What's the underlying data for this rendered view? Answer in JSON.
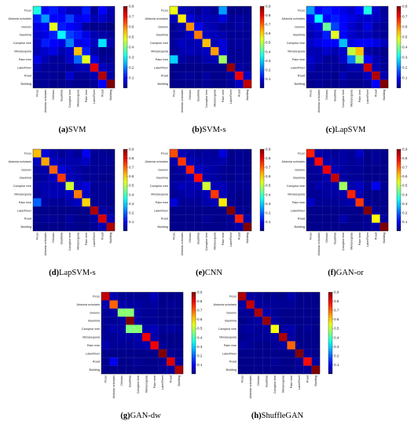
{
  "figure": {
    "class_labels": [
      "Ficus",
      "Alstonia scholaris",
      "Delonix",
      "Bauhinia",
      "Camphor tree",
      "Metasequoia",
      "Palm tree",
      "Lake/River",
      "Road",
      "Building"
    ]
  },
  "chart_data": [
    {
      "type": "heatmap",
      "id": "a",
      "caption_label": "(a)",
      "caption_text": "SVM",
      "colorbar": {
        "min": 0,
        "max": 0.8,
        "ticks": [
          0.1,
          0.2,
          0.3,
          0.4,
          0.5,
          0.6,
          0.7,
          0.8
        ]
      },
      "matrix": [
        [
          0.32,
          0.1,
          0.12,
          0.08,
          0.05,
          0.05,
          0.12,
          0.02,
          0.1,
          0.04
        ],
        [
          0.12,
          0.22,
          0.1,
          0.1,
          0.15,
          0.08,
          0.1,
          0.04,
          0.06,
          0.03
        ],
        [
          0.08,
          0.1,
          0.48,
          0.12,
          0.1,
          0.08,
          0.02,
          0.01,
          0.01,
          0.0
        ],
        [
          0.06,
          0.08,
          0.12,
          0.3,
          0.15,
          0.12,
          0.08,
          0.04,
          0.03,
          0.02
        ],
        [
          0.05,
          0.12,
          0.1,
          0.08,
          0.2,
          0.08,
          0.1,
          0.05,
          0.28,
          0.04
        ],
        [
          0.04,
          0.06,
          0.08,
          0.04,
          0.06,
          0.55,
          0.12,
          0.03,
          0.01,
          0.01
        ],
        [
          0.08,
          0.04,
          0.02,
          0.02,
          0.06,
          0.18,
          0.48,
          0.08,
          0.02,
          0.02
        ],
        [
          0.04,
          0.02,
          0.02,
          0.02,
          0.02,
          0.04,
          0.04,
          0.72,
          0.05,
          0.03
        ],
        [
          0.02,
          0.02,
          0.02,
          0.01,
          0.06,
          0.02,
          0.02,
          0.04,
          0.76,
          0.03
        ],
        [
          0.01,
          0.02,
          0.01,
          0.01,
          0.02,
          0.01,
          0.01,
          0.02,
          0.1,
          0.8
        ]
      ]
    },
    {
      "type": "heatmap",
      "id": "b",
      "caption_label": "(b)",
      "caption_text": "SVM-s",
      "colorbar": {
        "min": 0,
        "max": 0.9,
        "ticks": [
          0.1,
          0.2,
          0.3,
          0.4,
          0.5,
          0.6,
          0.7,
          0.8,
          0.9
        ]
      },
      "matrix": [
        [
          0.55,
          0.05,
          0.04,
          0.02,
          0.04,
          0.02,
          0.25,
          0.01,
          0.01,
          0.01
        ],
        [
          0.06,
          0.58,
          0.08,
          0.04,
          0.05,
          0.04,
          0.08,
          0.02,
          0.03,
          0.02
        ],
        [
          0.02,
          0.04,
          0.66,
          0.1,
          0.05,
          0.04,
          0.02,
          0.02,
          0.03,
          0.02
        ],
        [
          0.02,
          0.03,
          0.06,
          0.68,
          0.06,
          0.05,
          0.04,
          0.02,
          0.02,
          0.02
        ],
        [
          0.03,
          0.06,
          0.04,
          0.05,
          0.62,
          0.05,
          0.08,
          0.02,
          0.03,
          0.02
        ],
        [
          0.02,
          0.04,
          0.05,
          0.04,
          0.06,
          0.65,
          0.08,
          0.02,
          0.02,
          0.02
        ],
        [
          0.3,
          0.03,
          0.02,
          0.02,
          0.04,
          0.05,
          0.48,
          0.02,
          0.02,
          0.02
        ],
        [
          0.01,
          0.01,
          0.01,
          0.01,
          0.01,
          0.01,
          0.01,
          0.88,
          0.03,
          0.02
        ],
        [
          0.01,
          0.02,
          0.02,
          0.01,
          0.03,
          0.01,
          0.01,
          0.03,
          0.8,
          0.06
        ],
        [
          0.01,
          0.01,
          0.01,
          0.01,
          0.02,
          0.01,
          0.01,
          0.02,
          0.06,
          0.84
        ]
      ]
    },
    {
      "type": "heatmap",
      "id": "c",
      "caption_label": "(c)",
      "caption_text": "LapSVM",
      "colorbar": {
        "min": 0,
        "max": 0.8,
        "ticks": [
          0.1,
          0.2,
          0.3,
          0.4,
          0.5,
          0.6,
          0.7,
          0.8
        ]
      },
      "matrix": [
        [
          0.22,
          0.1,
          0.12,
          0.1,
          0.08,
          0.06,
          0.1,
          0.32,
          0.06,
          0.02
        ],
        [
          0.1,
          0.3,
          0.1,
          0.12,
          0.1,
          0.08,
          0.06,
          0.06,
          0.05,
          0.03
        ],
        [
          0.06,
          0.08,
          0.38,
          0.15,
          0.1,
          0.06,
          0.04,
          0.08,
          0.03,
          0.02
        ],
        [
          0.04,
          0.06,
          0.12,
          0.48,
          0.1,
          0.06,
          0.04,
          0.05,
          0.03,
          0.02
        ],
        [
          0.06,
          0.08,
          0.1,
          0.1,
          0.25,
          0.08,
          0.1,
          0.1,
          0.08,
          0.05
        ],
        [
          0.04,
          0.04,
          0.06,
          0.04,
          0.06,
          0.45,
          0.55,
          0.03,
          0.02,
          0.01
        ],
        [
          0.06,
          0.04,
          0.02,
          0.02,
          0.06,
          0.2,
          0.42,
          0.1,
          0.04,
          0.02
        ],
        [
          0.04,
          0.02,
          0.02,
          0.02,
          0.02,
          0.04,
          0.04,
          0.74,
          0.04,
          0.02
        ],
        [
          0.02,
          0.02,
          0.02,
          0.01,
          0.04,
          0.02,
          0.02,
          0.05,
          0.76,
          0.04
        ],
        [
          0.01,
          0.02,
          0.01,
          0.01,
          0.02,
          0.01,
          0.01,
          0.02,
          0.1,
          0.8
        ]
      ]
    },
    {
      "type": "heatmap",
      "id": "d",
      "caption_label": "(d)",
      "caption_text": "LapSVM-s",
      "colorbar": {
        "min": 0,
        "max": 0.9,
        "ticks": [
          0.1,
          0.2,
          0.3,
          0.4,
          0.5,
          0.6,
          0.7,
          0.8,
          0.9
        ]
      },
      "matrix": [
        [
          0.62,
          0.08,
          0.04,
          0.02,
          0.04,
          0.02,
          0.1,
          0.02,
          0.02,
          0.01
        ],
        [
          0.06,
          0.64,
          0.06,
          0.04,
          0.04,
          0.04,
          0.06,
          0.02,
          0.02,
          0.02
        ],
        [
          0.03,
          0.04,
          0.7,
          0.08,
          0.05,
          0.03,
          0.02,
          0.02,
          0.02,
          0.01
        ],
        [
          0.02,
          0.03,
          0.06,
          0.74,
          0.05,
          0.04,
          0.02,
          0.02,
          0.01,
          0.01
        ],
        [
          0.03,
          0.04,
          0.04,
          0.05,
          0.52,
          0.05,
          0.08,
          0.02,
          0.02,
          0.02
        ],
        [
          0.02,
          0.04,
          0.05,
          0.04,
          0.06,
          0.68,
          0.06,
          0.02,
          0.02,
          0.01
        ],
        [
          0.2,
          0.03,
          0.02,
          0.02,
          0.04,
          0.06,
          0.6,
          0.02,
          0.02,
          0.01
        ],
        [
          0.01,
          0.01,
          0.01,
          0.01,
          0.01,
          0.01,
          0.01,
          0.86,
          0.03,
          0.02
        ],
        [
          0.01,
          0.02,
          0.02,
          0.01,
          0.03,
          0.01,
          0.01,
          0.03,
          0.82,
          0.05
        ],
        [
          0.01,
          0.01,
          0.01,
          0.01,
          0.02,
          0.01,
          0.01,
          0.02,
          0.05,
          0.86
        ]
      ]
    },
    {
      "type": "heatmap",
      "id": "e",
      "caption_label": "(e)",
      "caption_text": "CNN",
      "colorbar": {
        "min": 0,
        "max": 0.9,
        "ticks": [
          0.1,
          0.2,
          0.3,
          0.4,
          0.5,
          0.6,
          0.7,
          0.8,
          0.9
        ]
      },
      "matrix": [
        [
          0.72,
          0.05,
          0.03,
          0.02,
          0.03,
          0.02,
          0.08,
          0.01,
          0.02,
          0.01
        ],
        [
          0.04,
          0.74,
          0.05,
          0.03,
          0.03,
          0.03,
          0.04,
          0.01,
          0.02,
          0.01
        ],
        [
          0.02,
          0.03,
          0.76,
          0.06,
          0.04,
          0.03,
          0.02,
          0.01,
          0.02,
          0.01
        ],
        [
          0.02,
          0.02,
          0.05,
          0.78,
          0.04,
          0.03,
          0.02,
          0.01,
          0.02,
          0.01
        ],
        [
          0.03,
          0.05,
          0.04,
          0.05,
          0.52,
          0.05,
          0.05,
          0.02,
          0.02,
          0.02
        ],
        [
          0.02,
          0.03,
          0.04,
          0.03,
          0.05,
          0.74,
          0.05,
          0.02,
          0.01,
          0.01
        ],
        [
          0.08,
          0.02,
          0.02,
          0.02,
          0.04,
          0.05,
          0.58,
          0.02,
          0.01,
          0.01
        ],
        [
          0.01,
          0.01,
          0.01,
          0.01,
          0.01,
          0.01,
          0.01,
          0.9,
          0.02,
          0.01
        ],
        [
          0.01,
          0.01,
          0.01,
          0.01,
          0.02,
          0.01,
          0.01,
          0.02,
          0.76,
          0.04
        ],
        [
          0.01,
          0.01,
          0.01,
          0.01,
          0.01,
          0.01,
          0.01,
          0.02,
          0.04,
          0.9
        ]
      ]
    },
    {
      "type": "heatmap",
      "id": "f",
      "caption_label": "(f)",
      "caption_text": "GAN-or",
      "colorbar": {
        "min": 0,
        "max": 0.9,
        "ticks": [
          0.1,
          0.2,
          0.3,
          0.4,
          0.5,
          0.6,
          0.7,
          0.8,
          0.9
        ]
      },
      "matrix": [
        [
          0.76,
          0.04,
          0.03,
          0.02,
          0.03,
          0.02,
          0.06,
          0.01,
          0.02,
          0.01
        ],
        [
          0.03,
          0.78,
          0.04,
          0.03,
          0.03,
          0.02,
          0.03,
          0.01,
          0.02,
          0.01
        ],
        [
          0.02,
          0.03,
          0.8,
          0.05,
          0.03,
          0.02,
          0.02,
          0.01,
          0.01,
          0.01
        ],
        [
          0.02,
          0.02,
          0.04,
          0.84,
          0.03,
          0.02,
          0.02,
          0.01,
          0.01,
          0.01
        ],
        [
          0.02,
          0.04,
          0.03,
          0.04,
          0.48,
          0.04,
          0.06,
          0.02,
          0.1,
          0.02
        ],
        [
          0.02,
          0.02,
          0.03,
          0.03,
          0.04,
          0.76,
          0.05,
          0.01,
          0.01,
          0.01
        ],
        [
          0.06,
          0.02,
          0.02,
          0.02,
          0.03,
          0.04,
          0.74,
          0.02,
          0.01,
          0.01
        ],
        [
          0.01,
          0.01,
          0.01,
          0.01,
          0.01,
          0.01,
          0.01,
          0.9,
          0.02,
          0.01
        ],
        [
          0.01,
          0.01,
          0.01,
          0.01,
          0.04,
          0.01,
          0.01,
          0.02,
          0.56,
          0.03
        ],
        [
          0.01,
          0.01,
          0.01,
          0.01,
          0.01,
          0.01,
          0.01,
          0.02,
          0.04,
          0.9
        ]
      ]
    },
    {
      "type": "heatmap",
      "id": "g",
      "caption_label": "(g)",
      "caption_text": "GAN-dw",
      "colorbar": {
        "min": 0,
        "max": 0.9,
        "ticks": [
          0.1,
          0.2,
          0.3,
          0.4,
          0.5,
          0.6,
          0.7,
          0.8,
          0.9
        ]
      },
      "matrix": [
        [
          0.84,
          0.04,
          0.02,
          0.02,
          0.02,
          0.02,
          0.05,
          0.01,
          0.01,
          0.01
        ],
        [
          0.04,
          0.7,
          0.04,
          0.03,
          0.03,
          0.02,
          0.03,
          0.01,
          0.02,
          0.01
        ],
        [
          0.02,
          0.03,
          0.46,
          0.46,
          0.03,
          0.02,
          0.02,
          0.01,
          0.01,
          0.01
        ],
        [
          0.02,
          0.02,
          0.03,
          0.9,
          0.03,
          0.02,
          0.02,
          0.01,
          0.01,
          0.01
        ],
        [
          0.02,
          0.04,
          0.03,
          0.45,
          0.46,
          0.04,
          0.05,
          0.02,
          0.03,
          0.02
        ],
        [
          0.02,
          0.02,
          0.03,
          0.03,
          0.04,
          0.8,
          0.04,
          0.01,
          0.01,
          0.01
        ],
        [
          0.04,
          0.02,
          0.02,
          0.02,
          0.03,
          0.04,
          0.8,
          0.02,
          0.01,
          0.01
        ],
        [
          0.01,
          0.01,
          0.01,
          0.01,
          0.01,
          0.01,
          0.01,
          0.92,
          0.02,
          0.01
        ],
        [
          0.01,
          0.1,
          0.01,
          0.01,
          0.02,
          0.01,
          0.01,
          0.02,
          0.82,
          0.03
        ],
        [
          0.01,
          0.01,
          0.01,
          0.01,
          0.01,
          0.01,
          0.01,
          0.02,
          0.03,
          0.86
        ]
      ]
    },
    {
      "type": "heatmap",
      "id": "h",
      "caption_label": "(h)",
      "caption_text": "ShuffleGAN",
      "colorbar": {
        "min": 0,
        "max": 0.9,
        "ticks": [
          0.1,
          0.2,
          0.3,
          0.4,
          0.5,
          0.6,
          0.7,
          0.8,
          0.9
        ]
      },
      "matrix": [
        [
          0.86,
          0.03,
          0.02,
          0.01,
          0.02,
          0.01,
          0.04,
          0.01,
          0.01,
          0.01
        ],
        [
          0.03,
          0.84,
          0.03,
          0.02,
          0.02,
          0.02,
          0.02,
          0.01,
          0.01,
          0.01
        ],
        [
          0.02,
          0.02,
          0.86,
          0.04,
          0.02,
          0.01,
          0.01,
          0.01,
          0.01,
          0.01
        ],
        [
          0.01,
          0.02,
          0.03,
          0.88,
          0.03,
          0.01,
          0.01,
          0.01,
          0.01,
          0.01
        ],
        [
          0.02,
          0.03,
          0.02,
          0.03,
          0.56,
          0.03,
          0.04,
          0.01,
          0.02,
          0.01
        ],
        [
          0.01,
          0.02,
          0.02,
          0.02,
          0.03,
          0.86,
          0.03,
          0.01,
          0.01,
          0.01
        ],
        [
          0.03,
          0.02,
          0.01,
          0.01,
          0.02,
          0.03,
          0.7,
          0.01,
          0.01,
          0.01
        ],
        [
          0.01,
          0.01,
          0.01,
          0.01,
          0.01,
          0.01,
          0.01,
          0.9,
          0.02,
          0.01
        ],
        [
          0.01,
          0.01,
          0.01,
          0.01,
          0.02,
          0.01,
          0.01,
          0.02,
          0.78,
          0.03
        ],
        [
          0.01,
          0.01,
          0.01,
          0.01,
          0.01,
          0.01,
          0.01,
          0.02,
          0.02,
          0.9
        ]
      ]
    }
  ]
}
